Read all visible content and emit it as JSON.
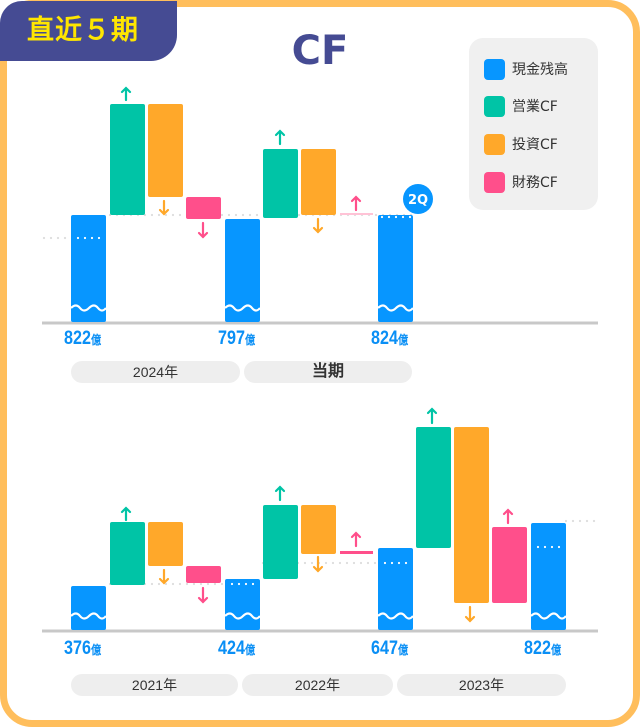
{
  "badge": "直近５期",
  "title": "CF",
  "legend": [
    {
      "label": "現金残高",
      "color": "#0796FF"
    },
    {
      "label": "営業CF",
      "color": "#00C4A6"
    },
    {
      "label": "投資CF",
      "color": "#FFA82A"
    },
    {
      "label": "財務CF",
      "color": "#FF4F8B"
    }
  ],
  "quarter_badge": "2Q",
  "unit": "億",
  "chart_data": {
    "type": "waterfall",
    "title": "CF",
    "unit": "億",
    "cash_balances": [
      {
        "label": "376",
        "value": 376
      },
      {
        "label": "424",
        "value": 424
      },
      {
        "label": "647",
        "value": 647
      },
      {
        "label": "822",
        "value": 822
      },
      {
        "label": "797",
        "value": 797
      },
      {
        "label": "824",
        "value": 824
      }
    ],
    "periods": [
      {
        "label": "2021年",
        "operating": "up",
        "investing": "down",
        "financing": "down"
      },
      {
        "label": "2022年",
        "operating": "up",
        "investing": "down",
        "financing": "up"
      },
      {
        "label": "2023年",
        "operating": "up",
        "investing": "down",
        "financing": "up"
      },
      {
        "label": "2024年",
        "operating": "up",
        "investing": "down",
        "financing": "down"
      },
      {
        "label": "当期",
        "operating": "up",
        "investing": "down",
        "financing": "up"
      }
    ]
  }
}
